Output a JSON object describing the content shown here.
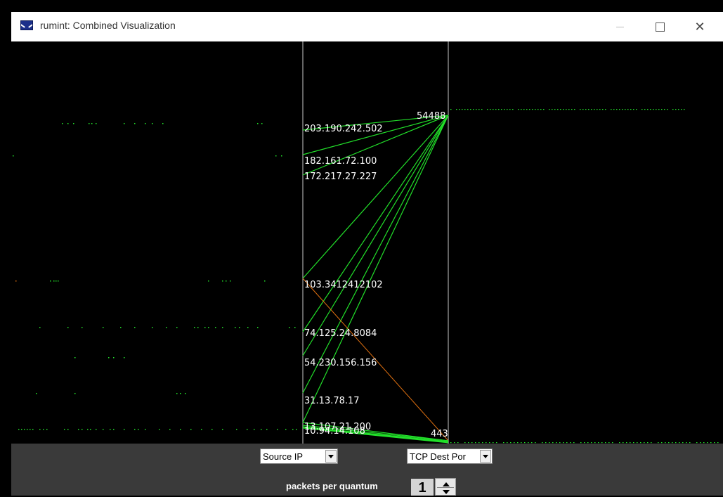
{
  "window": {
    "title": "rumint: Combined Visualization",
    "icon": "envelope-icon",
    "controls": [
      "minimize-icon",
      "maximize-icon",
      "close-icon"
    ]
  },
  "visualization": {
    "type": "parallel-coordinates",
    "colors": {
      "background": "#000000",
      "axis": "#c8c8c8",
      "line": "#22e02a",
      "line_highlight": "#e07010",
      "label": "#ffffff"
    },
    "left_axis_labels": [
      "203.190.242.502",
      "182.161.72.100",
      "172.217.27.227",
      "103.3412412102",
      "74.125.24.8084",
      "54.230.156.156",
      "31.13.78.17",
      "13.107.21.200",
      "10.94.14.108"
    ],
    "right_axis_labels": [
      "54488",
      "443"
    ],
    "connections": [
      {
        "from": "203.190.242.502",
        "to": "54488",
        "color": "green"
      },
      {
        "from": "182.161.72.100",
        "to": "54488",
        "color": "green"
      },
      {
        "from": "172.217.27.227",
        "to": "54488",
        "color": "green"
      },
      {
        "from": "103.3412412102",
        "to": "54488",
        "color": "green"
      },
      {
        "from": "74.125.24.8084",
        "to": "54488",
        "color": "green"
      },
      {
        "from": "54.230.156.156",
        "to": "54488",
        "color": "green"
      },
      {
        "from": "31.13.78.17",
        "to": "54488",
        "color": "green"
      },
      {
        "from": "13.107.21.200",
        "to": "54488",
        "color": "green"
      },
      {
        "from": "103.3412412102",
        "to": "443",
        "color": "orange"
      },
      {
        "from": "13.107.21.200",
        "to": "443",
        "color": "green"
      },
      {
        "from": "10.94.14.108",
        "to": "443",
        "color": "green"
      }
    ]
  },
  "controls": {
    "left_axis_select": "Source IP",
    "right_axis_select": "TCP Dest Por",
    "quantum_label": "packets per quantum",
    "quantum_value": "1"
  }
}
